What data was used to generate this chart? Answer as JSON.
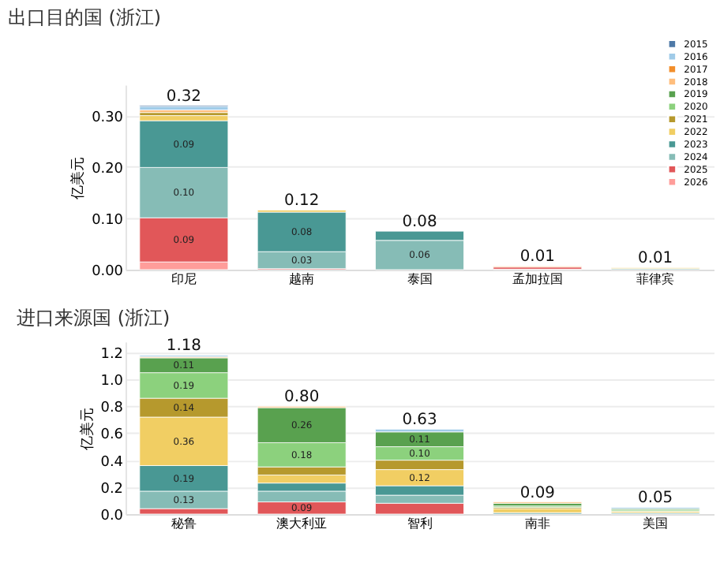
{
  "chart_data": [
    {
      "type": "bar",
      "stacked": true,
      "title": "出口目的国 (浙江)",
      "ylabel": "亿美元",
      "categories": [
        "印尼",
        "越南",
        "泰国",
        "孟加拉国",
        "菲律宾"
      ],
      "ylim": [
        0,
        0.36
      ],
      "yticks": [
        {
          "value": 0,
          "label": "0.00"
        },
        {
          "value": 0.1,
          "label": "0.10"
        },
        {
          "value": 0.2,
          "label": "0.20"
        },
        {
          "value": 0.3,
          "label": "0.30"
        }
      ],
      "grid": "y",
      "legend": "top right",
      "totals": [
        "0.32",
        "0.12",
        "0.08",
        "0.01",
        "0.01"
      ],
      "series": [
        {
          "name": "2026",
          "color": "#ff9d9a",
          "values": [
            0.015,
            null,
            null,
            0.001,
            null
          ],
          "value_labels": [
            null,
            null,
            null,
            null,
            null
          ]
        },
        {
          "name": "2025",
          "color": "#e15759",
          "values": [
            0.086,
            0.002,
            null,
            0.004,
            null
          ],
          "value_labels": [
            "0.09",
            null,
            null,
            null,
            null
          ]
        },
        {
          "name": "2024",
          "color": "#86bcb6",
          "values": [
            0.098,
            0.033,
            0.057,
            null,
            0.002
          ],
          "value_labels": [
            "0.10",
            "0.03",
            "0.06",
            null,
            null
          ]
        },
        {
          "name": "2023",
          "color": "#499894",
          "values": [
            0.091,
            0.077,
            0.018,
            null,
            null
          ],
          "value_labels": [
            "0.09",
            "0.08",
            null,
            null,
            null
          ]
        },
        {
          "name": "2022",
          "color": "#f1ce63",
          "values": [
            0.01,
            0.004,
            null,
            null,
            0.002
          ],
          "value_labels": [
            null,
            null,
            null,
            null,
            null
          ]
        },
        {
          "name": "2021",
          "color": "#b6992d",
          "values": [
            0.006,
            null,
            null,
            null,
            null
          ],
          "value_labels": [
            null,
            null,
            null,
            null,
            null
          ]
        },
        {
          "name": "2020",
          "color": "#8cd17d",
          "values": [
            null,
            null,
            null,
            null,
            null
          ],
          "value_labels": [
            null,
            null,
            null,
            null,
            null
          ]
        },
        {
          "name": "2019",
          "color": "#59a14f",
          "values": [
            null,
            null,
            null,
            null,
            null
          ],
          "value_labels": [
            null,
            null,
            null,
            null,
            null
          ]
        },
        {
          "name": "2018",
          "color": "#ffbe7d",
          "values": [
            0.005,
            null,
            null,
            0.002,
            null
          ],
          "value_labels": [
            null,
            null,
            null,
            null,
            null
          ]
        },
        {
          "name": "2017",
          "color": "#f28e2b",
          "values": [
            null,
            null,
            null,
            null,
            null
          ],
          "value_labels": [
            null,
            null,
            null,
            null,
            null
          ]
        },
        {
          "name": "2016",
          "color": "#a0cbe8",
          "values": [
            0.007,
            null,
            null,
            null,
            null
          ],
          "value_labels": [
            null,
            null,
            null,
            null,
            null
          ]
        },
        {
          "name": "2015",
          "color": "#4e79a7",
          "values": [
            0.002,
            null,
            null,
            null,
            null
          ],
          "value_labels": [
            null,
            null,
            null,
            null,
            null
          ]
        }
      ]
    },
    {
      "type": "bar",
      "stacked": true,
      "title": "进口来源国 (浙江)",
      "ylabel": "亿美元",
      "categories": [
        "秘鲁",
        "澳大利亚",
        "智利",
        "南非",
        "美国"
      ],
      "ylim": [
        0,
        1.28
      ],
      "yticks": [
        {
          "value": 0,
          "label": "0.0"
        },
        {
          "value": 0.2,
          "label": "0.2"
        },
        {
          "value": 0.4,
          "label": "0.4"
        },
        {
          "value": 0.6,
          "label": "0.6"
        },
        {
          "value": 0.8,
          "label": "0.8"
        },
        {
          "value": 1,
          "label": "1.0"
        },
        {
          "value": 1.2,
          "label": "1.2"
        }
      ],
      "grid": "y",
      "totals": [
        "1.18",
        "0.80",
        "0.63",
        "0.09",
        "0.05"
      ],
      "series": [
        {
          "color": "#e15759",
          "values": [
            0.04,
            0.09,
            0.08,
            null,
            null
          ],
          "value_labels": [
            null,
            "0.09",
            null,
            null,
            null
          ]
        },
        {
          "color": "#86bcb6",
          "values": [
            0.13,
            0.08,
            0.06,
            null,
            0.01
          ],
          "value_labels": [
            "0.13",
            null,
            null,
            null,
            null
          ]
        },
        {
          "color": "#499894",
          "values": [
            0.19,
            0.06,
            0.07,
            0.01,
            null
          ],
          "value_labels": [
            "0.19",
            null,
            null,
            null,
            null
          ]
        },
        {
          "color": "#f1ce63",
          "values": [
            0.36,
            0.06,
            0.12,
            0.03,
            0.01
          ],
          "value_labels": [
            "0.36",
            null,
            "0.12",
            null,
            null
          ]
        },
        {
          "color": "#b6992d",
          "values": [
            0.14,
            0.06,
            0.07,
            0.01,
            null
          ],
          "value_labels": [
            "0.14",
            null,
            null,
            null,
            null
          ]
        },
        {
          "color": "#8cd17d",
          "values": [
            0.19,
            0.18,
            0.1,
            0.01,
            0.01
          ],
          "value_labels": [
            "0.19",
            "0.18",
            "0.10",
            null,
            null
          ]
        },
        {
          "color": "#59a14f",
          "values": [
            0.11,
            0.26,
            0.11,
            0.02,
            0.01
          ],
          "value_labels": [
            "0.11",
            "0.26",
            "0.11",
            null,
            null
          ]
        },
        {
          "color": "#ffbe7d",
          "values": [
            0.01,
            0.01,
            null,
            0.01,
            null
          ],
          "value_labels": [
            null,
            null,
            null,
            null,
            null
          ]
        },
        {
          "color": "#a0cbe8",
          "values": [
            0.01,
            null,
            0.02,
            null,
            0.01
          ],
          "value_labels": [
            null,
            null,
            null,
            null,
            null
          ]
        }
      ]
    }
  ]
}
